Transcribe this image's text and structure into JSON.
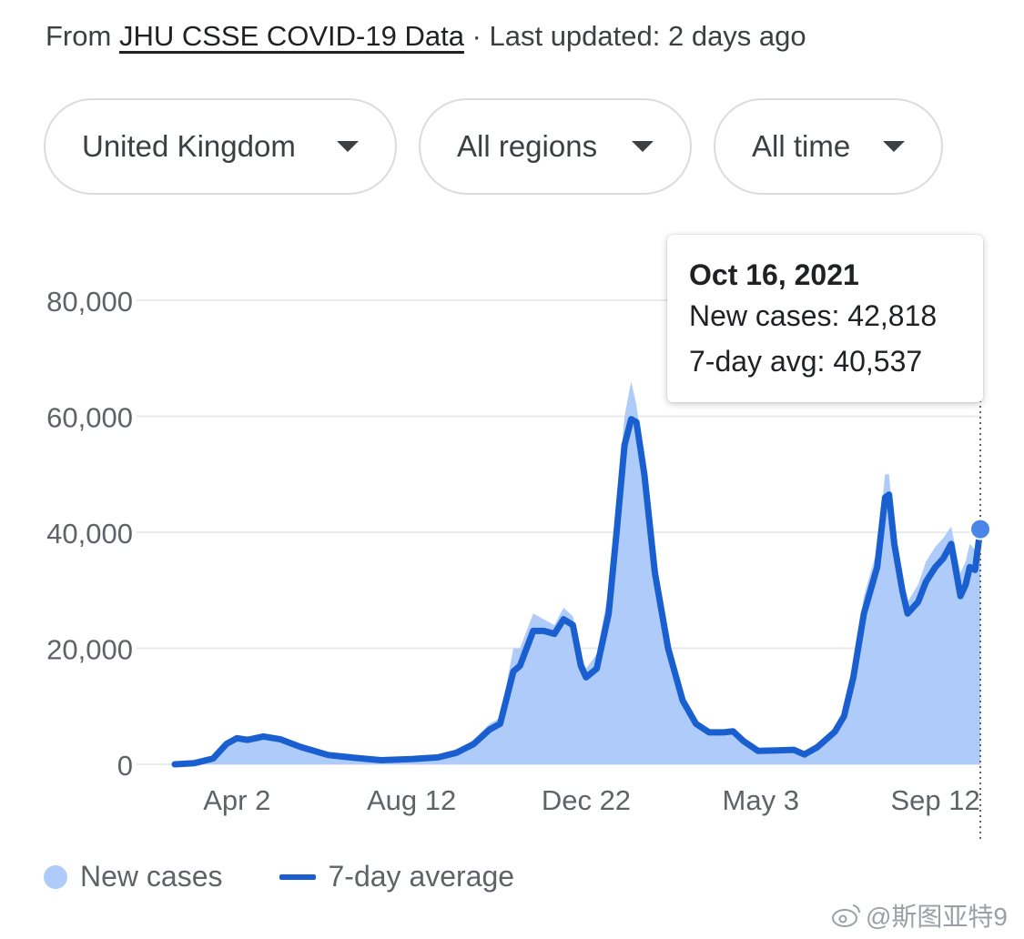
{
  "source": {
    "prefix": "From ",
    "link": "JHU CSSE COVID-19 Data",
    "suffix": " · Last updated: 2 days ago"
  },
  "filters": {
    "country": "United Kingdom",
    "region": "All regions",
    "time": "All time"
  },
  "tooltip": {
    "date": "Oct 16, 2021",
    "new_cases": "New cases: 42,818",
    "avg": "7-day avg: 40,537"
  },
  "legend": {
    "new_cases": "New cases",
    "avg": "7-day average"
  },
  "watermark": "@斯图亚特9",
  "colors": {
    "bars": "#aecbfa",
    "line": "#1a5fd0",
    "marker": "#4a86e8",
    "grid": "#e8eaed"
  },
  "chart_data": {
    "type": "area",
    "ylim": [
      0,
      80000
    ],
    "yticks": [
      "0",
      "20,000",
      "40,000",
      "60,000",
      "80,000"
    ],
    "yticks_values": [
      0,
      20000,
      40000,
      60000,
      80000
    ],
    "xticks": [
      {
        "label": "Apr 2",
        "date": "2020-04-02"
      },
      {
        "label": "Aug 12",
        "date": "2020-08-12"
      },
      {
        "label": "Dec 22",
        "date": "2020-12-22"
      },
      {
        "label": "May 3",
        "date": "2021-05-03"
      },
      {
        "label": "Sep 12",
        "date": "2021-09-12"
      }
    ],
    "x_start": "2020-02-15",
    "x_end": "2021-10-16",
    "series": [
      {
        "name": "7-day average",
        "points": [
          [
            "2020-02-15",
            0
          ],
          [
            "2020-03-01",
            200
          ],
          [
            "2020-03-15",
            1000
          ],
          [
            "2020-03-25",
            3500
          ],
          [
            "2020-04-02",
            4500
          ],
          [
            "2020-04-10",
            4200
          ],
          [
            "2020-04-22",
            4800
          ],
          [
            "2020-05-05",
            4300
          ],
          [
            "2020-05-20",
            3000
          ],
          [
            "2020-06-10",
            1600
          ],
          [
            "2020-07-01",
            1100
          ],
          [
            "2020-07-20",
            700
          ],
          [
            "2020-08-12",
            900
          ],
          [
            "2020-09-01",
            1200
          ],
          [
            "2020-09-15",
            2000
          ],
          [
            "2020-09-28",
            3500
          ],
          [
            "2020-10-10",
            6000
          ],
          [
            "2020-10-18",
            7000
          ],
          [
            "2020-10-28",
            16000
          ],
          [
            "2020-11-02",
            17000
          ],
          [
            "2020-11-12",
            23000
          ],
          [
            "2020-11-20",
            23000
          ],
          [
            "2020-11-28",
            22500
          ],
          [
            "2020-12-05",
            25000
          ],
          [
            "2020-12-12",
            24000
          ],
          [
            "2020-12-18",
            17000
          ],
          [
            "2020-12-22",
            15000
          ],
          [
            "2020-12-30",
            16500
          ],
          [
            "2021-01-08",
            26000
          ],
          [
            "2021-01-14",
            40000
          ],
          [
            "2021-01-20",
            55000
          ],
          [
            "2021-01-25",
            59500
          ],
          [
            "2021-01-29",
            59000
          ],
          [
            "2021-02-04",
            50000
          ],
          [
            "2021-02-12",
            33000
          ],
          [
            "2021-02-22",
            20000
          ],
          [
            "2021-03-05",
            11000
          ],
          [
            "2021-03-15",
            7000
          ],
          [
            "2021-03-25",
            5500
          ],
          [
            "2021-04-05",
            5500
          ],
          [
            "2021-04-12",
            5700
          ],
          [
            "2021-04-20",
            4000
          ],
          [
            "2021-05-01",
            2300
          ],
          [
            "2021-05-15",
            2400
          ],
          [
            "2021-05-28",
            2500
          ],
          [
            "2021-06-05",
            1700
          ],
          [
            "2021-06-15",
            3000
          ],
          [
            "2021-06-28",
            5600
          ],
          [
            "2021-07-05",
            8300
          ],
          [
            "2021-07-12",
            15000
          ],
          [
            "2021-07-20",
            26000
          ],
          [
            "2021-07-30",
            34000
          ],
          [
            "2021-08-05",
            46000
          ],
          [
            "2021-08-08",
            46500
          ],
          [
            "2021-08-12",
            38000
          ],
          [
            "2021-08-18",
            30000
          ],
          [
            "2021-08-22",
            26000
          ],
          [
            "2021-08-30",
            28000
          ],
          [
            "2021-09-05",
            31500
          ],
          [
            "2021-09-12",
            34000
          ],
          [
            "2021-09-18",
            35500
          ],
          [
            "2021-09-24",
            38000
          ],
          [
            "2021-10-01",
            29000
          ],
          [
            "2021-10-05",
            31000
          ],
          [
            "2021-10-08",
            34000
          ],
          [
            "2021-10-12",
            33500
          ],
          [
            "2021-10-16",
            40537
          ]
        ]
      },
      {
        "name": "New cases",
        "points": [
          [
            "2020-02-15",
            0
          ],
          [
            "2020-03-01",
            300
          ],
          [
            "2020-03-15",
            1300
          ],
          [
            "2020-03-25",
            4000
          ],
          [
            "2020-04-02",
            5000
          ],
          [
            "2020-04-10",
            4800
          ],
          [
            "2020-04-22",
            5200
          ],
          [
            "2020-05-05",
            4600
          ],
          [
            "2020-05-20",
            3200
          ],
          [
            "2020-06-10",
            1700
          ],
          [
            "2020-07-01",
            1200
          ],
          [
            "2020-07-20",
            800
          ],
          [
            "2020-08-12",
            1000
          ],
          [
            "2020-09-01",
            1400
          ],
          [
            "2020-09-15",
            2400
          ],
          [
            "2020-09-28",
            4200
          ],
          [
            "2020-10-10",
            7000
          ],
          [
            "2020-10-18",
            8000
          ],
          [
            "2020-10-28",
            20000
          ],
          [
            "2020-11-02",
            20000
          ],
          [
            "2020-11-12",
            26000
          ],
          [
            "2020-11-20",
            25000
          ],
          [
            "2020-11-28",
            24000
          ],
          [
            "2020-12-05",
            27000
          ],
          [
            "2020-12-12",
            25500
          ],
          [
            "2020-12-18",
            19000
          ],
          [
            "2020-12-22",
            16500
          ],
          [
            "2020-12-30",
            19000
          ],
          [
            "2021-01-08",
            30000
          ],
          [
            "2021-01-14",
            44000
          ],
          [
            "2021-01-20",
            60000
          ],
          [
            "2021-01-25",
            66000
          ],
          [
            "2021-01-29",
            62000
          ],
          [
            "2021-02-04",
            52000
          ],
          [
            "2021-02-12",
            34000
          ],
          [
            "2021-02-22",
            21000
          ],
          [
            "2021-03-05",
            11500
          ],
          [
            "2021-03-15",
            7500
          ],
          [
            "2021-03-25",
            6000
          ],
          [
            "2021-04-05",
            5800
          ],
          [
            "2021-04-12",
            6000
          ],
          [
            "2021-04-20",
            4400
          ],
          [
            "2021-05-01",
            2600
          ],
          [
            "2021-05-15",
            2600
          ],
          [
            "2021-05-28",
            2700
          ],
          [
            "2021-06-05",
            2000
          ],
          [
            "2021-06-15",
            3400
          ],
          [
            "2021-06-28",
            6200
          ],
          [
            "2021-07-05",
            9000
          ],
          [
            "2021-07-12",
            17000
          ],
          [
            "2021-07-20",
            29000
          ],
          [
            "2021-07-30",
            37000
          ],
          [
            "2021-08-05",
            50000
          ],
          [
            "2021-08-08",
            50000
          ],
          [
            "2021-08-12",
            40000
          ],
          [
            "2021-08-18",
            32000
          ],
          [
            "2021-08-22",
            28000
          ],
          [
            "2021-08-30",
            31000
          ],
          [
            "2021-09-05",
            35000
          ],
          [
            "2021-09-12",
            37500
          ],
          [
            "2021-09-18",
            39000
          ],
          [
            "2021-09-24",
            41000
          ],
          [
            "2021-10-01",
            33000
          ],
          [
            "2021-10-05",
            35000
          ],
          [
            "2021-10-08",
            38000
          ],
          [
            "2021-10-12",
            37000
          ],
          [
            "2021-10-16",
            42818
          ]
        ]
      }
    ],
    "selected": {
      "date": "2021-10-16",
      "new_cases": 42818,
      "avg": 40537
    },
    "legend_position": "bottom-left",
    "grid": true
  }
}
